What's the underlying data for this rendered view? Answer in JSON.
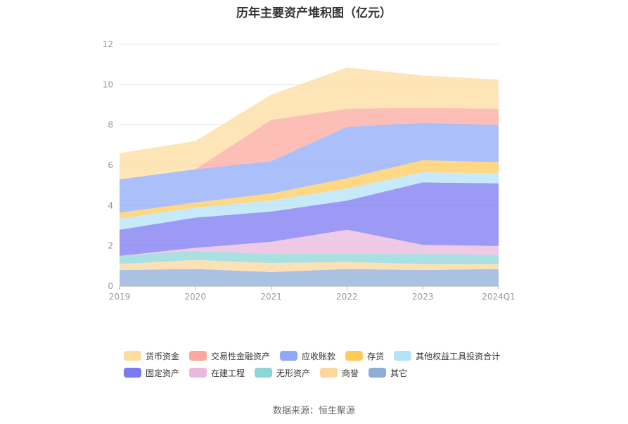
{
  "chart_data": {
    "type": "area",
    "stacked": true,
    "title": "历年主要资产堆积图（亿元）",
    "xlabel": "",
    "ylabel": "",
    "ylim": [
      0,
      12
    ],
    "yticks": [
      0,
      2,
      4,
      6,
      8,
      10,
      12
    ],
    "categories": [
      "2019",
      "2020",
      "2021",
      "2022",
      "2023",
      "2024Q1"
    ],
    "series": [
      {
        "name": "其它",
        "color": "#8eaed8",
        "values": [
          0.8,
          0.85,
          0.7,
          0.85,
          0.8,
          0.85
        ]
      },
      {
        "name": "商誉",
        "color": "#fbd79d",
        "values": [
          0.3,
          0.45,
          0.45,
          0.35,
          0.3,
          0.25
        ]
      },
      {
        "name": "无形资产",
        "color": "#8cd6d8",
        "values": [
          0.4,
          0.45,
          0.45,
          0.4,
          0.5,
          0.45
        ]
      },
      {
        "name": "在建工程",
        "color": "#e9b8dd",
        "values": [
          0.0,
          0.15,
          0.6,
          1.2,
          0.45,
          0.45
        ]
      },
      {
        "name": "固定资产",
        "color": "#7b78f2",
        "values": [
          1.3,
          1.5,
          1.5,
          1.45,
          3.1,
          3.1
        ]
      },
      {
        "name": "其他权益工具投资合计",
        "color": "#b3e3f7",
        "values": [
          0.55,
          0.5,
          0.55,
          0.6,
          0.5,
          0.5
        ]
      },
      {
        "name": "存货",
        "color": "#fdcb5b",
        "values": [
          0.3,
          0.25,
          0.35,
          0.5,
          0.6,
          0.55
        ]
      },
      {
        "name": "应收账款",
        "color": "#8fa9f8",
        "values": [
          1.65,
          1.65,
          1.6,
          2.55,
          1.85,
          1.85
        ]
      },
      {
        "name": "交易性金融资产",
        "color": "#fba89e",
        "values": [
          0.0,
          0.0,
          2.05,
          0.9,
          0.75,
          0.8
        ]
      },
      {
        "name": "货币资金",
        "color": "#fddca0",
        "values": [
          1.3,
          1.4,
          1.25,
          2.05,
          1.6,
          1.45
        ]
      }
    ]
  },
  "legend": [
    [
      {
        "name": "货币资金",
        "color": "#fddca0"
      },
      {
        "name": "交易性金融资产",
        "color": "#fba89e"
      },
      {
        "name": "应收账款",
        "color": "#8fa9f8"
      },
      {
        "name": "存货",
        "color": "#fdcb5b"
      },
      {
        "name": "其他权益工具投资合计",
        "color": "#b3e3f7"
      }
    ],
    [
      {
        "name": "固定资产",
        "color": "#7b78f2"
      },
      {
        "name": "在建工程",
        "color": "#e9b8dd"
      },
      {
        "name": "无形资产",
        "color": "#8cd6d8"
      },
      {
        "name": "商誉",
        "color": "#fbd79d"
      },
      {
        "name": "其它",
        "color": "#8eaed8"
      }
    ]
  ],
  "source": "数据来源：恒生聚源"
}
